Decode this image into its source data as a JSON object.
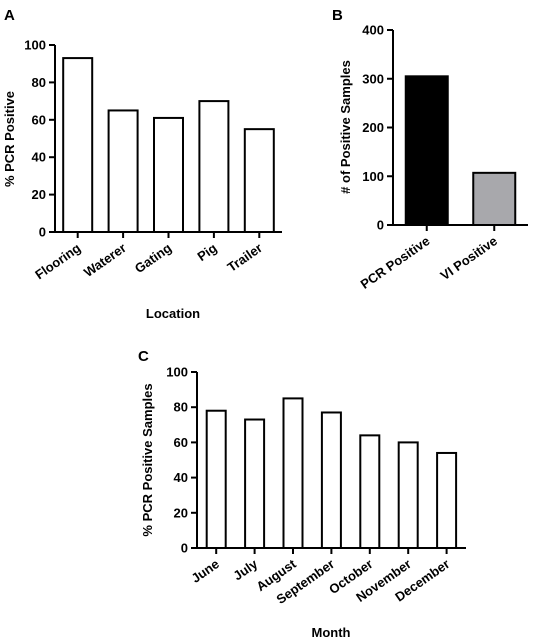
{
  "chart_data": [
    {
      "panel": "A",
      "type": "bar",
      "categories": [
        "Flooring",
        "Waterer",
        "Gating",
        "Pig",
        "Trailer"
      ],
      "values": [
        93,
        65,
        61,
        70,
        55
      ],
      "xlabel": "Location",
      "ylabel": "% PCR Positive",
      "ylim": [
        0,
        100
      ],
      "yticks": [
        0,
        20,
        40,
        60,
        80,
        100
      ],
      "colors": [
        "#ffffff",
        "#ffffff",
        "#ffffff",
        "#ffffff",
        "#ffffff"
      ]
    },
    {
      "panel": "B",
      "type": "bar",
      "categories": [
        "PCR Positive",
        "VI Positive"
      ],
      "values": [
        305,
        107
      ],
      "xlabel": "",
      "ylabel": "# of Positive Samples",
      "ylim": [
        0,
        400
      ],
      "yticks": [
        0,
        100,
        200,
        300,
        400
      ],
      "colors": [
        "#000000",
        "#a8a8ac"
      ]
    },
    {
      "panel": "C",
      "type": "bar",
      "categories": [
        "June",
        "July",
        "August",
        "September",
        "October",
        "November",
        "December"
      ],
      "values": [
        78,
        73,
        85,
        77,
        64,
        60,
        54
      ],
      "xlabel": "Month",
      "ylabel": "% PCR Positive Samples",
      "ylim": [
        0,
        100
      ],
      "yticks": [
        0,
        20,
        40,
        60,
        80,
        100
      ],
      "colors": [
        "#ffffff",
        "#ffffff",
        "#ffffff",
        "#ffffff",
        "#ffffff",
        "#ffffff",
        "#ffffff"
      ]
    }
  ]
}
